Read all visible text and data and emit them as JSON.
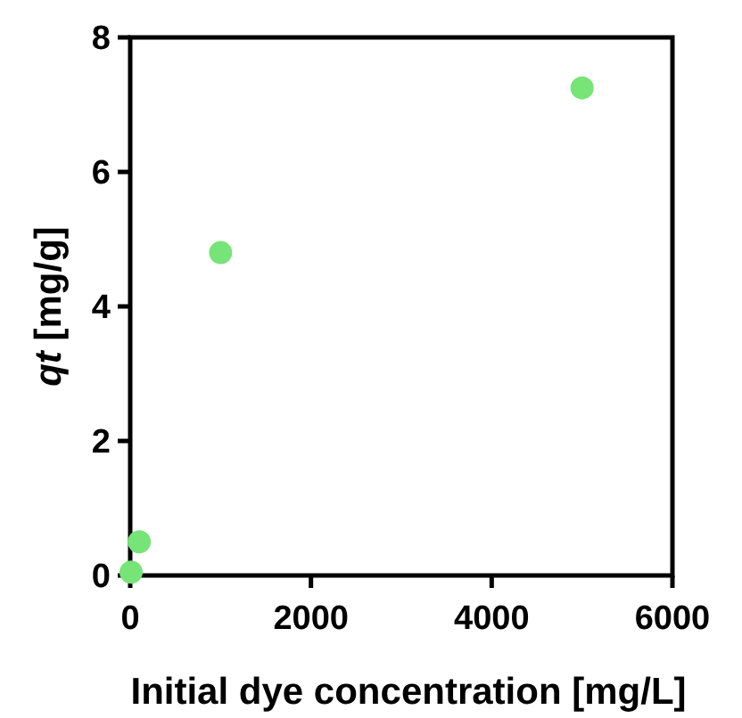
{
  "chart_data": {
    "type": "scatter",
    "xlabel": "Initial dye concentration [mg/L]",
    "ylabel": "qt [mg/g]",
    "x": [
      10,
      100,
      1000,
      5000
    ],
    "series": [
      {
        "color": "#77e477",
        "values": [
          0.05,
          0.5,
          4.8,
          7.25
        ]
      }
    ],
    "xlim": [
      0,
      6000
    ],
    "xticks": [
      0,
      2000,
      4000,
      6000
    ],
    "ylim": [
      0,
      8
    ],
    "yticks": [
      0,
      2,
      4,
      6,
      8
    ],
    "marker": "circle"
  }
}
